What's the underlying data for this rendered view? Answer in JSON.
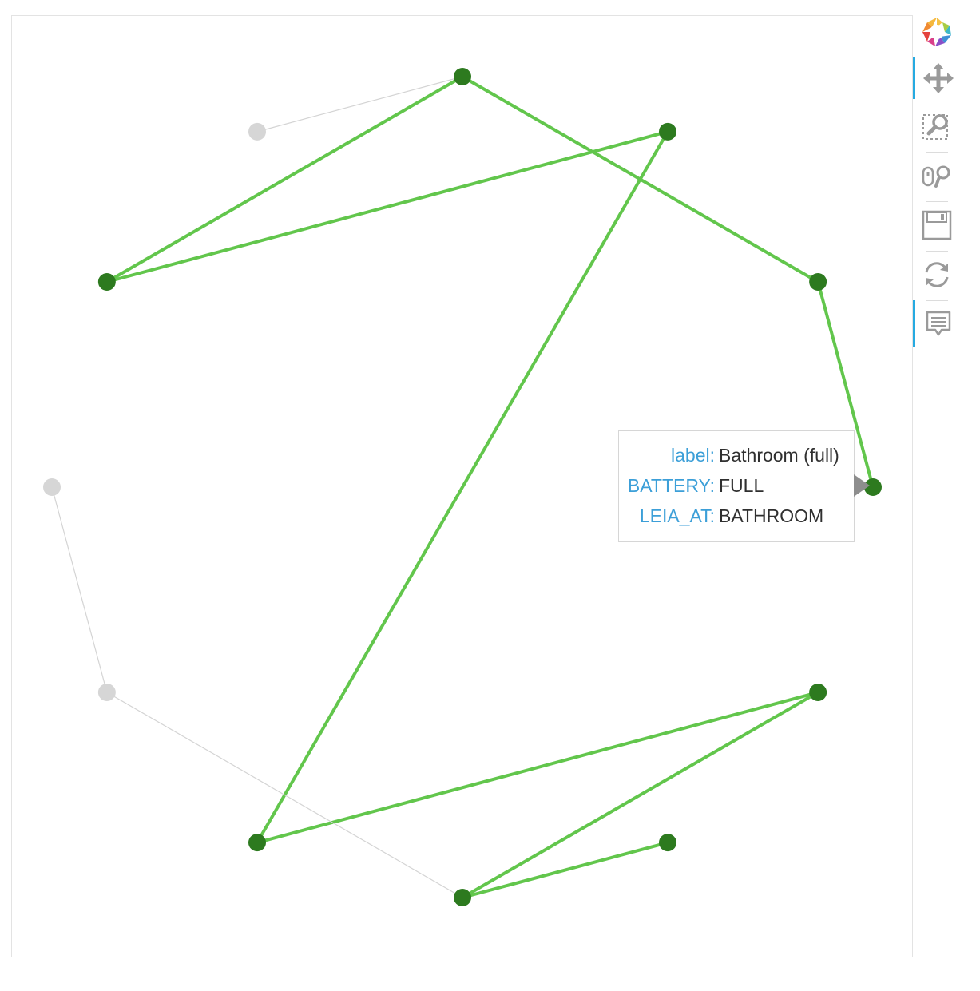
{
  "toolbar": {
    "tools": [
      {
        "name": "bokeh-logo",
        "icon": "bokeh-logo-icon",
        "active": false
      },
      {
        "name": "pan-tool",
        "icon": "pan-icon",
        "active": true
      },
      {
        "name": "box-zoom-tool",
        "icon": "box-zoom-icon",
        "active": false
      },
      {
        "name": "wheel-zoom-tool",
        "icon": "wheel-zoom-icon",
        "active": false
      },
      {
        "name": "save-tool",
        "icon": "save-icon",
        "active": false
      },
      {
        "name": "reset-tool",
        "icon": "reset-icon",
        "active": false
      },
      {
        "name": "hover-tool",
        "icon": "hover-icon",
        "active": true
      }
    ]
  },
  "colors": {
    "active_node": "#2d7a1f",
    "active_edge": "#62c64c",
    "inactive_node": "#d6d6d6",
    "inactive_edge": "#d4d4d4",
    "tooltip_key": "#3c9fd8",
    "toolbar_accent": "#26aae1"
  },
  "graph": {
    "layout": "circular",
    "nodes": [
      {
        "id": 0,
        "angle_deg": 90,
        "active": true
      },
      {
        "id": 1,
        "angle_deg": 120,
        "active": false
      },
      {
        "id": 2,
        "angle_deg": 150,
        "active": true
      },
      {
        "id": 3,
        "angle_deg": 180,
        "active": false
      },
      {
        "id": 4,
        "angle_deg": 210,
        "active": false
      },
      {
        "id": 5,
        "angle_deg": 240,
        "active": true
      },
      {
        "id": 6,
        "angle_deg": 270,
        "active": true
      },
      {
        "id": 7,
        "angle_deg": 300,
        "active": true
      },
      {
        "id": 8,
        "angle_deg": 330,
        "active": true
      },
      {
        "id": 9,
        "angle_deg": 0,
        "active": true,
        "hovered": true
      },
      {
        "id": 10,
        "angle_deg": 30,
        "active": true
      },
      {
        "id": 11,
        "angle_deg": 60,
        "active": true
      }
    ],
    "edges": [
      {
        "from": 1,
        "to": 0,
        "active": false
      },
      {
        "from": 0,
        "to": 2,
        "active": true
      },
      {
        "from": 2,
        "to": 11,
        "active": true
      },
      {
        "from": 11,
        "to": 5,
        "active": true
      },
      {
        "from": 5,
        "to": 8,
        "active": true
      },
      {
        "from": 8,
        "to": 6,
        "active": true
      },
      {
        "from": 6,
        "to": 7,
        "active": true
      },
      {
        "from": 0,
        "to": 10,
        "active": true
      },
      {
        "from": 10,
        "to": 9,
        "active": true
      },
      {
        "from": 3,
        "to": 4,
        "active": false
      },
      {
        "from": 4,
        "to": 6,
        "active": false
      }
    ]
  },
  "tooltip": {
    "rows": [
      {
        "key": "label:",
        "value": "Bathroom (full)"
      },
      {
        "key": "BATTERY:",
        "value": "FULL"
      },
      {
        "key": "LEIA_AT:",
        "value": "BATHROOM"
      }
    ]
  }
}
